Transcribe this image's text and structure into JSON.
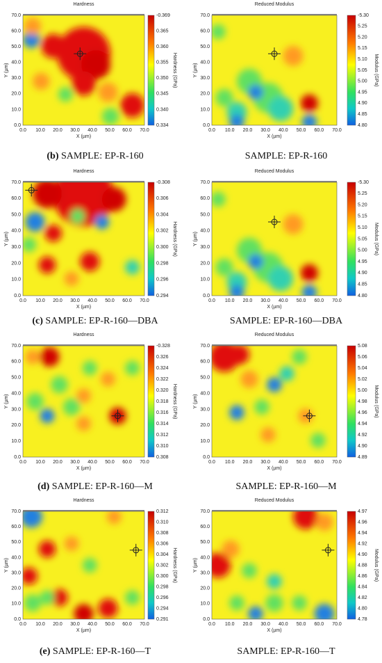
{
  "panels": [
    {
      "title": "Hardness",
      "x_label": "X (µm)",
      "y_label": "Y (µm)",
      "xticks": [
        "0.0",
        "10.0",
        "20.0",
        "30.0",
        "40.0",
        "50.0",
        "60.0",
        "70.0"
      ],
      "yticks": [
        "0.0",
        "10.0",
        "20.0",
        "30.0",
        "40.0",
        "50.0",
        "60.0",
        "70.0"
      ],
      "colorbar_label": "Hardness (GPa)",
      "colorbar_ticks": [
        "-0.369",
        "0.365",
        "0.360",
        "0.355",
        "0.350",
        "0.345",
        "0.340",
        "0.334"
      ],
      "caption": {
        "label": "(b)",
        "text": "SAMPLE: EP-R-160"
      }
    },
    {
      "title": "Reduced Modulus",
      "x_label": "X (µm)",
      "y_label": "Y (µm)",
      "xticks": [
        "0.0",
        "10.0",
        "20.0",
        "30.0",
        "40.0",
        "50.0",
        "60.0",
        "70.0"
      ],
      "yticks": [
        "0.0",
        "10.0",
        "20.0",
        "30.0",
        "40.0",
        "50.0",
        "60.0",
        "70.0"
      ],
      "colorbar_label": "Modulus (GPa)",
      "colorbar_ticks": [
        "-5.30",
        "5.25",
        "5.20",
        "5.15",
        "5.10",
        "5.05",
        "5.00",
        "4.95",
        "4.90",
        "4.85",
        "4.80"
      ],
      "caption": {
        "text": "SAMPLE: EP-R-160"
      }
    },
    {
      "title": "Hardness",
      "x_label": "X (µm)",
      "y_label": "Y (µm)",
      "xticks": [
        "0.0",
        "10.0",
        "20.0",
        "30.0",
        "40.0",
        "50.0",
        "60.0",
        "70.0"
      ],
      "yticks": [
        "0.0",
        "10.0",
        "20.0",
        "30.0",
        "40.0",
        "50.0",
        "60.0",
        "70.0"
      ],
      "colorbar_label": "Hardness (GPa)",
      "colorbar_ticks": [
        "-0.308",
        "0.306",
        "0.304",
        "0.302",
        "0.300",
        "0.298",
        "0.296",
        "0.294"
      ],
      "caption": {
        "label": "(c)",
        "text": "SAMPLE: EP-R-160—DBA"
      }
    },
    {
      "title": "Reduced Modulus",
      "x_label": "X (µm)",
      "y_label": "Y (µm)",
      "xticks": [
        "0.0",
        "10.0",
        "20.0",
        "30.0",
        "40.0",
        "50.0",
        "60.0",
        "70.0"
      ],
      "yticks": [
        "0.0",
        "10.0",
        "20.0",
        "30.0",
        "40.0",
        "50.0",
        "60.0",
        "70.0"
      ],
      "colorbar_label": "Modulus (GPa)",
      "colorbar_ticks": [
        "-5.30",
        "5.25",
        "5.20",
        "5.15",
        "5.10",
        "5.05",
        "5.00",
        "4.95",
        "4.90",
        "4.85",
        "4.80"
      ],
      "caption": {
        "text": "SAMPLE: EP-R-160—DBA"
      }
    },
    {
      "title": "Hardness",
      "x_label": "X (µm)",
      "y_label": "Y (µm)",
      "xticks": [
        "0.0",
        "10.0",
        "20.0",
        "30.0",
        "40.0",
        "50.0",
        "60.0",
        "70.0"
      ],
      "yticks": [
        "0.0",
        "10.0",
        "20.0",
        "30.0",
        "40.0",
        "50.0",
        "60.0",
        "70.0"
      ],
      "colorbar_label": "Hardness (GPa)",
      "colorbar_ticks": [
        "-0.328",
        "0.326",
        "0.324",
        "0.322",
        "0.320",
        "0.318",
        "0.316",
        "0.314",
        "0.312",
        "0.310",
        "0.308"
      ],
      "caption": {
        "label": "(d)",
        "text": "SAMPLE: EP-R-160—M"
      }
    },
    {
      "title": "Reduced Modulus",
      "x_label": "X (µm)",
      "y_label": "Y (µm)",
      "xticks": [
        "0.0",
        "10.0",
        "20.0",
        "30.0",
        "40.0",
        "50.0",
        "60.0",
        "70.0"
      ],
      "yticks": [
        "0.0",
        "10.0",
        "20.0",
        "30.0",
        "40.0",
        "50.0",
        "60.0",
        "70.0"
      ],
      "colorbar_label": "Modulus (GPa)",
      "colorbar_ticks": [
        "5.08",
        "5.06",
        "5.04",
        "5.02",
        "5.00",
        "4.98",
        "4.96",
        "4.94",
        "4.92",
        "4.90",
        "4.89"
      ],
      "caption": {
        "text": "SAMPLE: EP-R-160—M"
      }
    },
    {
      "title": "Hardness",
      "x_label": "X (µm)",
      "y_label": "Y (µm)",
      "xticks": [
        "0.0",
        "10.0",
        "20.0",
        "30.0",
        "40.0",
        "50.0",
        "60.0",
        "70.0"
      ],
      "yticks": [
        "0.0",
        "10.0",
        "20.0",
        "30.0",
        "40.0",
        "50.0",
        "60.0",
        "70.0"
      ],
      "colorbar_label": "Hardness (GPa)",
      "colorbar_ticks": [
        "0.312",
        "0.310",
        "0.308",
        "0.306",
        "0.304",
        "0.302",
        "0.300",
        "0.298",
        "0.296",
        "0.294",
        "0.291"
      ],
      "caption": {
        "label": "(e)",
        "text": "SAMPLE: EP-R-160—T"
      }
    },
    {
      "title": "Reduced Modulus",
      "x_label": "X (µm)",
      "y_label": "Y (µm)",
      "xticks": [
        "0.0",
        "10.0",
        "20.0",
        "30.0",
        "40.0",
        "50.0",
        "60.0",
        "70.0"
      ],
      "yticks": [
        "0.0",
        "10.0",
        "20.0",
        "30.0",
        "40.0",
        "50.0",
        "60.0",
        "70.0"
      ],
      "colorbar_label": "Modulus (GPa)",
      "colorbar_ticks": [
        "4.97",
        "4.96",
        "4.94",
        "4.92",
        "4.90",
        "4.88",
        "4.86",
        "4.84",
        "4.82",
        "4.80",
        "4.78"
      ],
      "caption": {
        "text": "SAMPLE: EP-R-160—T"
      }
    }
  ]
}
